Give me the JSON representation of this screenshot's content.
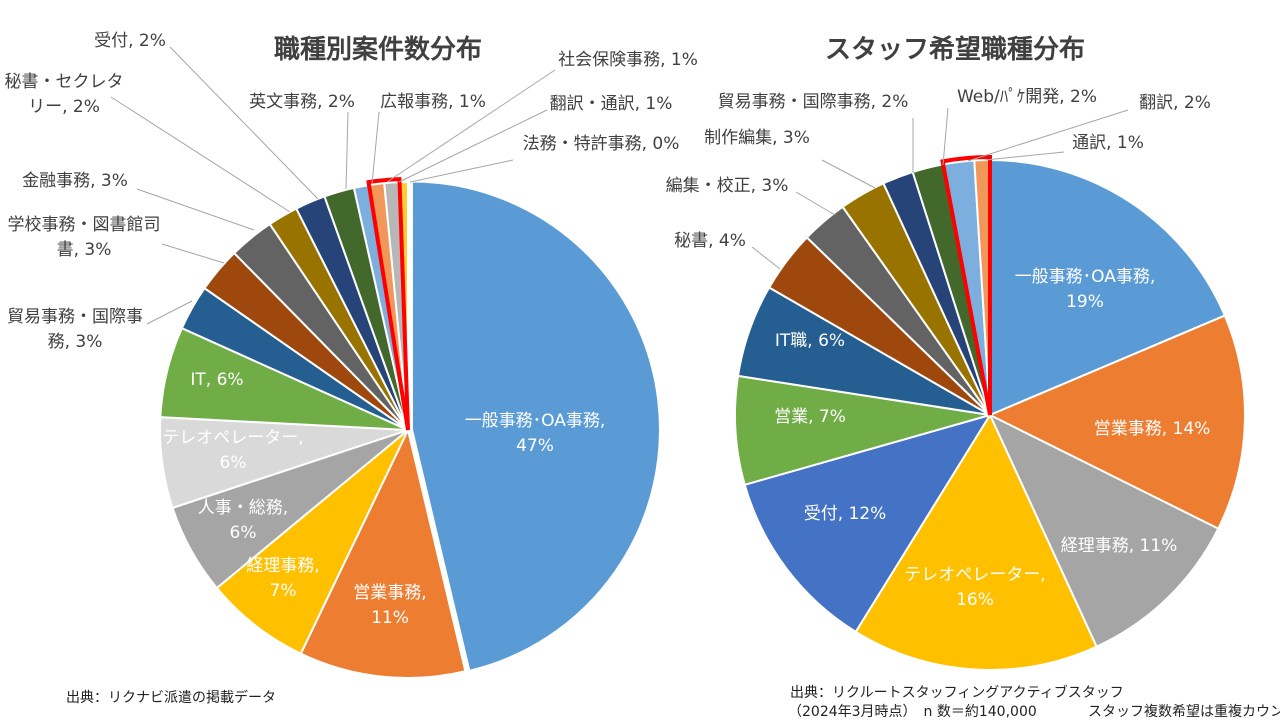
{
  "chart_data": [
    {
      "type": "pie",
      "title": "職種別案件数分布",
      "slices": [
        {
          "label": "一般事務･OA事務",
          "value": 47,
          "text": "一般事務･OA事務,|47%",
          "color": "#5B9BD5",
          "pos": "inside"
        },
        {
          "label": "営業事務",
          "value": 11,
          "text": "営業事務,|11%",
          "color": "#ED7D31",
          "pos": "inside"
        },
        {
          "label": "経理事務",
          "value": 7,
          "text": "経理事務,|7%",
          "color": "#FFC000",
          "pos": "inside"
        },
        {
          "label": "人事・総務",
          "value": 6,
          "text": "人事・総務,|6%",
          "color": "#A5A5A5",
          "pos": "inside"
        },
        {
          "label": "テレオペレーター",
          "value": 6,
          "text": "テレオペレーター,|6%",
          "color": "#D9D9D9",
          "pos": "inside"
        },
        {
          "label": "IT",
          "value": 6,
          "text": "IT, 6%",
          "color": "#70AD47",
          "pos": "inside"
        },
        {
          "label": "貿易事務・国際事務",
          "value": 3,
          "text": "貿易事務・国際事|務, 3%",
          "color": "#255E91",
          "pos": "outside"
        },
        {
          "label": "学校事務・図書館司書",
          "value": 3,
          "text": "学校事務・図書館司|書, 3%",
          "color": "#9E480E",
          "pos": "outside"
        },
        {
          "label": "金融事務",
          "value": 3,
          "text": "金融事務, 3%",
          "color": "#636363",
          "pos": "outside"
        },
        {
          "label": "秘書・セクレタリー",
          "value": 2,
          "text": "秘書・セクレタ|リー, 2%",
          "color": "#997300",
          "pos": "outside"
        },
        {
          "label": "受付",
          "value": 2,
          "text": "受付, 2%",
          "color": "#264478",
          "pos": "outside"
        },
        {
          "label": "英文事務",
          "value": 2,
          "text": "英文事務, 2%",
          "color": "#43682B",
          "pos": "outside"
        },
        {
          "label": "広報事務",
          "value": 1,
          "text": "広報事務, 1%",
          "color": "#7CAFDD",
          "pos": "outside"
        },
        {
          "label": "社会保険事務",
          "value": 1,
          "text": "社会保険事務, 1%",
          "color": "#F1975A",
          "pos": "outside"
        },
        {
          "label": "翻訳・通訳",
          "value": 1,
          "text": "翻訳・通訳, 1%",
          "color": "#B7B7B7",
          "pos": "outside"
        },
        {
          "label": "法務・特許事務",
          "value": 0,
          "text": "法務・特許事務, 0%",
          "color": "#FFCD33",
          "pos": "outside"
        }
      ],
      "highlight": {
        "from_index": 13,
        "to_index": 14,
        "color": "#FF0000"
      },
      "source": "出典：リクナビ派遣の掲載データ"
    },
    {
      "type": "pie",
      "title": "スタッフ希望職種分布",
      "slices": [
        {
          "label": "一般事務･OA事務",
          "value": 19,
          "text": "一般事務･OA事務,|19%",
          "color": "#5B9BD5",
          "pos": "inside"
        },
        {
          "label": "営業事務",
          "value": 14,
          "text": "営業事務, 14%",
          "color": "#ED7D31",
          "pos": "inside"
        },
        {
          "label": "経理事務",
          "value": 11,
          "text": "経理事務, 11%",
          "color": "#A5A5A5",
          "pos": "inside"
        },
        {
          "label": "テレオペレーター",
          "value": 16,
          "text": "テレオペレーター,|16%",
          "color": "#FFC000",
          "pos": "inside"
        },
        {
          "label": "受付",
          "value": 12,
          "text": "受付, 12%",
          "color": "#4472C4",
          "pos": "inside"
        },
        {
          "label": "営業",
          "value": 7,
          "text": "営業, 7%",
          "color": "#70AD47",
          "pos": "inside"
        },
        {
          "label": "IT職",
          "value": 6,
          "text": "IT職, 6%",
          "color": "#255E91",
          "pos": "inside"
        },
        {
          "label": "秘書",
          "value": 4,
          "text": "秘書, 4%",
          "color": "#9E480E",
          "pos": "outside"
        },
        {
          "label": "編集・校正",
          "value": 3,
          "text": "編集・校正, 3%",
          "color": "#636363",
          "pos": "outside"
        },
        {
          "label": "制作編集",
          "value": 3,
          "text": "制作編集, 3%",
          "color": "#997300",
          "pos": "outside"
        },
        {
          "label": "貿易事務・国際事務",
          "value": 2,
          "text": "貿易事務・国際事務, 2%",
          "color": "#264478",
          "pos": "outside"
        },
        {
          "label": "Web/ﾊﾟｹ開発",
          "value": 2,
          "text": "Web/ﾊﾟｹ開発, 2%",
          "color": "#43682B",
          "pos": "outside"
        },
        {
          "label": "翻訳",
          "value": 2,
          "text": "翻訳, 2%",
          "color": "#7CAFDD",
          "pos": "outside"
        },
        {
          "label": "通訳",
          "value": 1,
          "text": "通訳, 1%",
          "color": "#F1975A",
          "pos": "outside"
        }
      ],
      "highlight": {
        "from_index": 12,
        "to_index": 13,
        "color": "#FF0000"
      },
      "source_lines": [
        "出典：リクルートスタッフィングアクティブスタッフ",
        "（2024年3月時点）　n 数＝約140,000",
        "スタッフ複数希望は重複カウント"
      ]
    }
  ]
}
